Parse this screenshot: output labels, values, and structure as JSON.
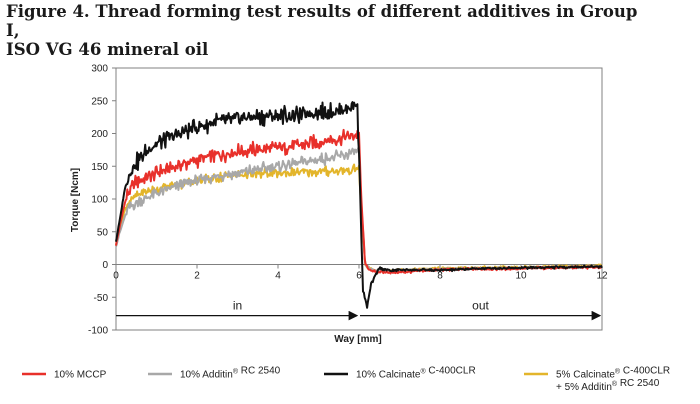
{
  "figure": {
    "title_line1": "Figure 4. Thread forming test results of different additives in Group I,",
    "title_line2": "ISO VG 46 mineral oil"
  },
  "chart_data": {
    "type": "line",
    "xlabel": "Way [mm]",
    "ylabel": "Torque [Ncm]",
    "xlim": [
      0,
      12
    ],
    "ylim": [
      -100,
      300
    ],
    "xticks": [
      0,
      2,
      4,
      6,
      8,
      10,
      12
    ],
    "yticks": [
      300,
      250,
      200,
      150,
      100,
      50,
      0,
      -50,
      -100
    ],
    "grid": false,
    "legend_position": "bottom",
    "regions": [
      {
        "label": "in",
        "from": 0,
        "to": 6
      },
      {
        "label": "out",
        "from": 6,
        "to": 12
      }
    ],
    "region_arrow_y": -78,
    "series": [
      {
        "name": "10% MCCP",
        "color": "#e8302a",
        "x": [
          0,
          0.1,
          0.2,
          0.3,
          0.5,
          0.8,
          1.0,
          1.5,
          2.0,
          2.5,
          3.0,
          3.5,
          4.0,
          4.5,
          5.0,
          5.5,
          5.9,
          6.0,
          6.05,
          6.15,
          6.3,
          6.6,
          7.0,
          8.0,
          9.0,
          10.0,
          11.0,
          12.0
        ],
        "y": [
          30,
          60,
          90,
          110,
          125,
          135,
          140,
          150,
          160,
          167,
          172,
          175,
          178,
          182,
          187,
          192,
          198,
          200,
          110,
          0,
          -10,
          -12,
          -12,
          -8,
          -7,
          -6,
          -5,
          -4
        ]
      },
      {
        "name": "10% Additin® RC 2540",
        "color": "#a8a8a8",
        "x": [
          0,
          0.1,
          0.2,
          0.3,
          0.5,
          0.8,
          1.0,
          1.5,
          2.0,
          2.5,
          3.0,
          3.5,
          4.0,
          4.5,
          5.0,
          5.5,
          5.9,
          6.0,
          6.05,
          6.15,
          6.3,
          6.6,
          7.0,
          8.0,
          9.0,
          10.0,
          11.0,
          12.0
        ],
        "y": [
          28,
          50,
          70,
          85,
          95,
          103,
          108,
          120,
          128,
          135,
          140,
          145,
          150,
          155,
          160,
          165,
          172,
          175,
          100,
          0,
          -8,
          -10,
          -9,
          -7,
          -6,
          -5,
          -4,
          -3
        ]
      },
      {
        "name": "10% Calcinate® C-400CLR",
        "color": "#111111",
        "x": [
          0,
          0.1,
          0.2,
          0.3,
          0.5,
          0.8,
          1.0,
          1.5,
          2.0,
          2.5,
          3.0,
          3.5,
          4.0,
          4.5,
          5.0,
          5.5,
          5.8,
          5.95,
          6.0,
          6.05,
          6.1,
          6.2,
          6.3,
          6.5,
          6.8,
          7.0,
          8.0,
          9.0,
          10.0,
          11.0,
          12.0
        ],
        "y": [
          35,
          70,
          110,
          135,
          155,
          175,
          185,
          198,
          210,
          218,
          222,
          226,
          228,
          230,
          232,
          235,
          240,
          245,
          180,
          60,
          -40,
          -65,
          -30,
          -5,
          -10,
          -8,
          -9,
          -6,
          -5,
          -4,
          -3
        ]
      },
      {
        "name": "5% Calcinate® C-400CLR + 5% Additin® RC 2540",
        "color": "#e3b52b",
        "x": [
          0,
          0.1,
          0.2,
          0.3,
          0.5,
          0.8,
          1.0,
          1.5,
          2.0,
          2.5,
          3.0,
          3.5,
          4.0,
          4.5,
          5.0,
          5.5,
          5.9,
          6.0,
          6.05,
          6.15,
          6.3,
          6.6,
          7.0,
          8.0,
          9.0,
          10.0,
          11.0,
          12.0
        ],
        "y": [
          30,
          55,
          80,
          95,
          105,
          112,
          115,
          122,
          128,
          133,
          136,
          138,
          140,
          141,
          142,
          143,
          145,
          148,
          90,
          0,
          -8,
          -10,
          -8,
          -6,
          -5,
          -4,
          -3,
          -2
        ]
      }
    ],
    "legend": [
      {
        "line1": "10% MCCP",
        "line2": ""
      },
      {
        "line1": "10% Additin® RC 2540",
        "line2": ""
      },
      {
        "line1": "10% Calcinate® C-400CLR",
        "line2": ""
      },
      {
        "line1": "5% Calcinate® C-400CLR",
        "line2": "+ 5% Additin® RC 2540"
      }
    ]
  }
}
